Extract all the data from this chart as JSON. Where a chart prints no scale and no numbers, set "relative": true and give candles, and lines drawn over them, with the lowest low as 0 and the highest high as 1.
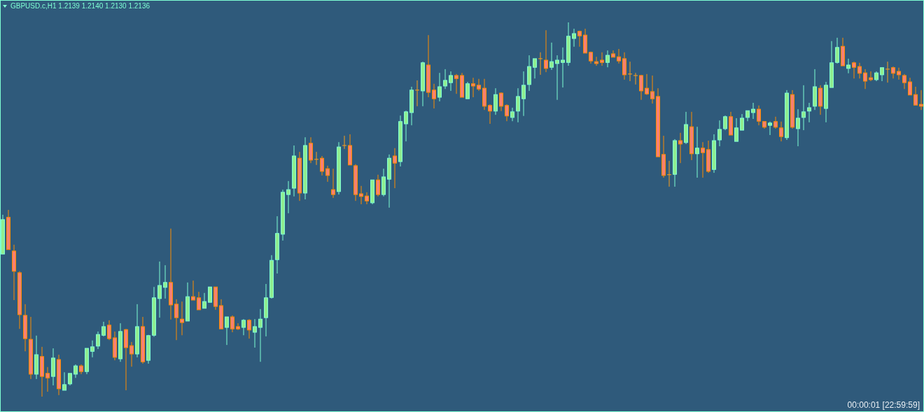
{
  "chart_data": {
    "type": "candlestick",
    "title": "GBPUSD.c,H1  1.2139 1.2140 1.2130 1.2136",
    "annotations": [
      "00:00:01 [22:59:59]"
    ],
    "relative": true,
    "categories": [
      null,
      null,
      null,
      null,
      null,
      null,
      null,
      null,
      null,
      null,
      null,
      null,
      null,
      null,
      null,
      null,
      null,
      null,
      null,
      null,
      null,
      null,
      null,
      null,
      null,
      null,
      null,
      null,
      null,
      null,
      null,
      null,
      null,
      null,
      null,
      null,
      null,
      null,
      null,
      null,
      null,
      null,
      null,
      null,
      null,
      null,
      null,
      null,
      null,
      null,
      null,
      null,
      null,
      null,
      null,
      null,
      null,
      null,
      null,
      null,
      null,
      null,
      null,
      null,
      null,
      null,
      null,
      null,
      null,
      null,
      null,
      null,
      null,
      null,
      null,
      null,
      null,
      null,
      null,
      null,
      null,
      null,
      null,
      null,
      null,
      null,
      null,
      null,
      null,
      null,
      null,
      null,
      null,
      null,
      null,
      null,
      null,
      null,
      null,
      null,
      null,
      null,
      null,
      null,
      null,
      null,
      null,
      null,
      null,
      null,
      null,
      null,
      null,
      null,
      null,
      null,
      null,
      null,
      null,
      null,
      null,
      null,
      null,
      null,
      null,
      null,
      null,
      null,
      null,
      null,
      null,
      null,
      null,
      null,
      null,
      null,
      null,
      null,
      null,
      null,
      null,
      null,
      null,
      null,
      null,
      null,
      null,
      null,
      null,
      null,
      null,
      null,
      null,
      null,
      null,
      null,
      null,
      null,
      null,
      null,
      null,
      null,
      null,
      null,
      null
    ],
    "ohlc": [
      [
        0.381,
        0.486,
        0.381,
        0.473
      ],
      [
        0.479,
        0.499,
        0.393,
        0.393
      ],
      [
        0.389,
        0.406,
        0.258,
        0.335
      ],
      [
        0.331,
        0.335,
        0.181,
        0.219
      ],
      [
        0.217,
        0.247,
        0.121,
        0.155
      ],
      [
        0.153,
        0.213,
        0.047,
        0.06
      ],
      [
        0.06,
        0.163,
        0.047,
        0.112
      ],
      [
        0.107,
        0.133,
        0,
        0.054
      ],
      [
        0.062,
        0.079,
        0.013,
        0.05
      ],
      [
        0.054,
        0.129,
        0.03,
        0.103
      ],
      [
        0.099,
        0.112,
        0.004,
        0.021
      ],
      [
        0.017,
        0.065,
        0.017,
        0.032
      ],
      [
        0.034,
        0.062,
        0.03,
        0.062
      ],
      [
        0.06,
        0.086,
        0.05,
        0.082
      ],
      [
        0.082,
        0.086,
        0.06,
        0.067
      ],
      [
        0.067,
        0.129,
        0.06,
        0.129
      ],
      [
        0.121,
        0.15,
        0.105,
        0.133
      ],
      [
        0.135,
        0.174,
        0.127,
        0.166
      ],
      [
        0.164,
        0.2,
        0.161,
        0.187
      ],
      [
        0.191,
        0.204,
        0.151,
        0.155
      ],
      [
        0.157,
        0.174,
        0.097,
        0.105
      ],
      [
        0.101,
        0.196,
        0.093,
        0.174
      ],
      [
        0.179,
        0.181,
        0.017,
        0.131
      ],
      [
        0.136,
        0.146,
        0.08,
        0.114
      ],
      [
        0.114,
        0.247,
        0.105,
        0.187
      ],
      [
        0.187,
        0.213,
        0.088,
        0.093
      ],
      [
        0.097,
        0.165,
        0.088,
        0.163
      ],
      [
        0.164,
        0.293,
        0.16,
        0.264
      ],
      [
        0.262,
        0.361,
        0.211,
        0.297
      ],
      [
        0.292,
        0.351,
        0.262,
        0.305
      ],
      [
        0.305,
        0.449,
        0.206,
        0.245
      ],
      [
        0.247,
        0.26,
        0.151,
        0.211
      ],
      [
        0.207,
        0.254,
        0.164,
        0.198
      ],
      [
        0.202,
        0.305,
        0.202,
        0.267
      ],
      [
        0.267,
        0.31,
        0.258,
        0.258
      ],
      [
        0.264,
        0.28,
        0.232,
        0.232
      ],
      [
        0.236,
        0.277,
        0.236,
        0.254
      ],
      [
        0.252,
        0.293,
        0.252,
        0.293
      ],
      [
        0.293,
        0.293,
        0.232,
        0.241
      ],
      [
        0.243,
        0.26,
        0.181,
        0.181
      ],
      [
        0.185,
        0.213,
        0.138,
        0.213
      ],
      [
        0.213,
        0.217,
        0.172,
        0.181
      ],
      [
        0.187,
        0.196,
        0.178,
        0.181
      ],
      [
        0.185,
        0.207,
        0.164,
        0.204
      ],
      [
        0.204,
        0.207,
        0.155,
        0.178
      ],
      [
        0.172,
        0.207,
        0.131,
        0.187
      ],
      [
        0.185,
        0.234,
        0.093,
        0.207
      ],
      [
        0.211,
        0.301,
        0.161,
        0.264
      ],
      [
        0.265,
        0.378,
        0.262,
        0.364
      ],
      [
        0.366,
        0.482,
        0.329,
        0.436
      ],
      [
        0.434,
        0.553,
        0.417,
        0.546
      ],
      [
        0.54,
        0.576,
        0.49,
        0.553
      ],
      [
        0.557,
        0.671,
        0.535,
        0.643
      ],
      [
        0.637,
        0.654,
        0.523,
        0.544
      ],
      [
        0.544,
        0.693,
        0.527,
        0.671
      ],
      [
        0.677,
        0.693,
        0.624,
        0.632
      ],
      [
        0.634,
        0.654,
        0.619,
        0.634
      ],
      [
        0.637,
        0.643,
        0.591,
        0.602
      ],
      [
        0.609,
        0.617,
        0.574,
        0.591
      ],
      [
        0.553,
        0.609,
        0.531,
        0.54
      ],
      [
        0.548,
        0.68,
        0.54,
        0.667
      ],
      [
        0.671,
        0.697,
        0.662,
        0.671
      ],
      [
        0.671,
        0.701,
        0.619,
        0.619
      ],
      [
        0.617,
        0.621,
        0.523,
        0.54
      ],
      [
        0.542,
        0.563,
        0.514,
        0.535
      ],
      [
        0.536,
        0.546,
        0.514,
        0.523
      ],
      [
        0.518,
        0.579,
        0.514,
        0.579
      ],
      [
        0.579,
        0.593,
        0.535,
        0.54
      ],
      [
        0.54,
        0.609,
        0.535,
        0.587
      ],
      [
        0.581,
        0.647,
        0.505,
        0.637
      ],
      [
        0.643,
        0.664,
        0.557,
        0.624
      ],
      [
        0.628,
        0.751,
        0.615,
        0.735
      ],
      [
        0.729,
        0.764,
        0.682,
        0.761
      ],
      [
        0.759,
        0.828,
        0.725,
        0.819
      ],
      [
        0.819,
        0.845,
        0.776,
        0.819
      ],
      [
        0.817,
        0.895,
        0.776,
        0.892
      ],
      [
        0.886,
        0.966,
        0.8,
        0.813
      ],
      [
        0.819,
        0.836,
        0.77,
        0.796
      ],
      [
        0.8,
        0.865,
        0.789,
        0.828
      ],
      [
        0.83,
        0.875,
        0.822,
        0.845
      ],
      [
        0.839,
        0.869,
        0.817,
        0.858
      ],
      [
        0.858,
        0.862,
        0.809,
        0.85
      ],
      [
        0.858,
        0.865,
        0.8,
        0.8
      ],
      [
        0.796,
        0.841,
        0.796,
        0.836
      ],
      [
        0.836,
        0.852,
        0.8,
        0.83
      ],
      [
        0.832,
        0.849,
        0.817,
        0.822
      ],
      [
        0.824,
        0.849,
        0.766,
        0.776
      ],
      [
        0.778,
        0.781,
        0.729,
        0.763
      ],
      [
        0.763,
        0.824,
        0.753,
        0.807
      ],
      [
        0.811,
        0.813,
        0.763,
        0.776
      ],
      [
        0.778,
        0.781,
        0.736,
        0.75
      ],
      [
        0.746,
        0.772,
        0.736,
        0.761
      ],
      [
        0.763,
        0.824,
        0.733,
        0.802
      ],
      [
        0.796,
        0.869,
        0.75,
        0.832
      ],
      [
        0.834,
        0.912,
        0.817,
        0.882
      ],
      [
        0.88,
        0.903,
        0.85,
        0.903
      ],
      [
        0.903,
        0.92,
        0.86,
        0.903
      ],
      [
        0.899,
        0.979,
        0.867,
        0.877
      ],
      [
        0.88,
        0.946,
        0.873,
        0.895
      ],
      [
        0.89,
        0.912,
        0.793,
        0.899
      ],
      [
        0.893,
        0.933,
        0.826,
        0.899
      ],
      [
        0.893,
        1,
        0.884,
        0.963
      ],
      [
        0.957,
        0.983,
        0.935,
        0.97
      ],
      [
        0.976,
        0.978,
        0.935,
        0.964
      ],
      [
        0.966,
        0.983,
        0.918,
        0.918
      ],
      [
        0.92,
        0.922,
        0.89,
        0.897
      ],
      [
        0.895,
        0.908,
        0.884,
        0.89
      ],
      [
        0.899,
        0.92,
        0.884,
        0.893
      ],
      [
        0.893,
        0.925,
        0.88,
        0.912
      ],
      [
        0.916,
        0.925,
        0.907,
        0.907
      ],
      [
        0.908,
        0.929,
        0.89,
        0.897
      ],
      [
        0.903,
        0.92,
        0.847,
        0.86
      ],
      [
        0.862,
        0.895,
        0.843,
        0.862
      ],
      [
        0.858,
        0.865,
        0.834,
        0.858
      ],
      [
        0.858,
        0.86,
        0.793,
        0.817
      ],
      [
        0.824,
        0.862,
        0.806,
        0.809
      ],
      [
        0.815,
        0.858,
        0.783,
        0.796
      ],
      [
        0.802,
        0.824,
        0.641,
        0.641
      ],
      [
        0.647,
        0.697,
        0.585,
        0.591
      ],
      [
        0.593,
        0.63,
        0.561,
        0.593
      ],
      [
        0.594,
        0.688,
        0.561,
        0.684
      ],
      [
        0.684,
        0.705,
        0.624,
        0.675
      ],
      [
        0.679,
        0.761,
        0.675,
        0.727
      ],
      [
        0.721,
        0.761,
        0.632,
        0.649
      ],
      [
        0.649,
        0.721,
        0.585,
        0.664
      ],
      [
        0.664,
        0.68,
        0.585,
        0.652
      ],
      [
        0.66,
        0.684,
        0.598,
        0.602
      ],
      [
        0.607,
        0.701,
        0.598,
        0.684
      ],
      [
        0.686,
        0.738,
        0.669,
        0.714
      ],
      [
        0.716,
        0.751,
        0.712,
        0.748
      ],
      [
        0.748,
        0.761,
        0.699,
        0.699
      ],
      [
        0.682,
        0.744,
        0.682,
        0.718
      ],
      [
        0.712,
        0.755,
        0.712,
        0.744
      ],
      [
        0.746,
        0.764,
        0.736,
        0.764
      ],
      [
        0.759,
        0.785,
        0.742,
        0.768
      ],
      [
        0.768,
        0.778,
        0.725,
        0.736
      ],
      [
        0.735,
        0.736,
        0.716,
        0.72
      ],
      [
        0.725,
        0.735,
        0.699,
        0.731
      ],
      [
        0.735,
        0.748,
        0.716,
        0.72
      ],
      [
        0.718,
        0.735,
        0.682,
        0.695
      ],
      [
        0.692,
        0.819,
        0.686,
        0.811
      ],
      [
        0.807,
        0.819,
        0.716,
        0.72
      ],
      [
        0.716,
        0.768,
        0.669,
        0.744
      ],
      [
        0.746,
        0.832,
        0.712,
        0.761
      ],
      [
        0.763,
        0.785,
        0.733,
        0.772
      ],
      [
        0.776,
        0.875,
        0.766,
        0.828
      ],
      [
        0.824,
        0.832,
        0.753,
        0.776
      ],
      [
        0.77,
        0.841,
        0.733,
        0.832
      ],
      [
        0.826,
        0.95,
        0.826,
        0.892
      ],
      [
        0.893,
        0.959,
        0.89,
        0.933
      ],
      [
        0.936,
        0.959,
        0.884,
        0.884
      ],
      [
        0.877,
        0.903,
        0.864,
        0.886
      ],
      [
        0.892,
        0.895,
        0.85,
        0.88
      ],
      [
        0.882,
        0.892,
        0.85,
        0.864
      ],
      [
        0.865,
        0.875,
        0.822,
        0.843
      ],
      [
        0.852,
        0.869,
        0.843,
        0.847
      ],
      [
        0.847,
        0.869,
        0.843,
        0.865
      ],
      [
        0.86,
        0.879,
        0.843,
        0.879
      ],
      [
        0.875,
        0.895,
        0.839,
        0.875
      ],
      [
        0.879,
        0.882,
        0.85,
        0.864
      ],
      [
        0.869,
        0.879,
        0.847,
        0.86
      ],
      [
        0.858,
        0.862,
        0.822,
        0.839
      ],
      [
        0.841,
        0.852,
        0.806,
        0.806
      ],
      [
        0.807,
        0.828,
        0.779,
        0.779
      ],
      [
        0.781,
        0.819,
        0.766,
        0.776
      ]
    ]
  }
}
